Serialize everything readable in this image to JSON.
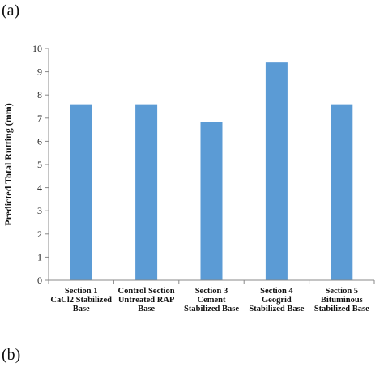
{
  "panels": {
    "a": "(a)",
    "b": "(b)"
  },
  "chart_data": {
    "type": "bar",
    "title": "",
    "xlabel": "",
    "ylabel": "Predicted Total Rutting (mm)",
    "ylim": [
      0,
      10
    ],
    "yticks": [
      0,
      1,
      2,
      3,
      4,
      5,
      6,
      7,
      8,
      9,
      10
    ],
    "grid": false,
    "categories": [
      [
        "Section 1",
        "CaCl2 Stabilized",
        "Base"
      ],
      [
        "Control Section",
        "Untreated RAP",
        "Base"
      ],
      [
        "Section 3",
        "Cement",
        "Stabilized Base"
      ],
      [
        "Section 4",
        "Geogrid",
        "Stabilized Base"
      ],
      [
        "Section 5",
        "Bituminous",
        "Stabilized Base"
      ]
    ],
    "values": [
      7.6,
      7.6,
      6.85,
      9.4,
      7.6
    ],
    "bar_color": "#5b9bd5",
    "axis_color": "#888888"
  }
}
